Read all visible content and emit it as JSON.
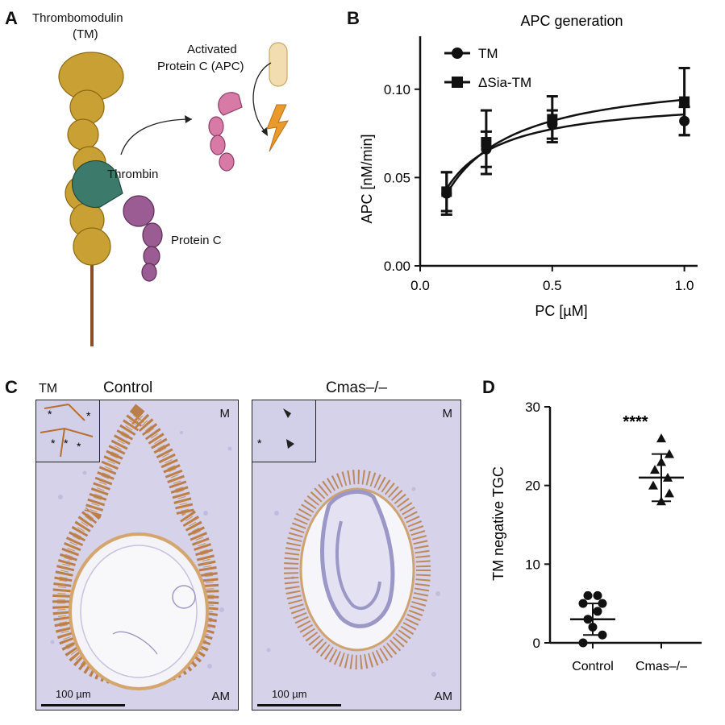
{
  "panels": {
    "a": "A",
    "b": "B",
    "c": "C",
    "d": "D"
  },
  "schematic": {
    "tm_label": "Thrombomodulin",
    "tm_abbrev": "(TM)",
    "apc_line1": "Activated",
    "apc_line2": "Protein C (APC)",
    "thrombin": "Thrombin",
    "protein_c": "Protein C"
  },
  "micrographs": {
    "stain_label": "TM",
    "control_title": "Control",
    "knockout_title": "Cmas–/–",
    "corner_top": "M",
    "corner_bottom": "AM",
    "scale_label": "100 µm"
  },
  "colors": {
    "tm_gold": "#c9a033",
    "thrombin_teal": "#3c7a6b",
    "protein_c_purple": "#9a5c93",
    "apc_pink": "#d87aa6",
    "lightning_orange": "#e99a2b",
    "stain_brown": "#b5702e",
    "tissue_blue": "#c9c6e4"
  },
  "chart_data": [
    {
      "type": "line",
      "title": "APC generation",
      "xlabel": "PC [µM]",
      "ylabel": "APC [nM/min]",
      "xlim": [
        0,
        1.05
      ],
      "ylim": [
        0,
        0.13
      ],
      "xticks": [
        "0.0",
        "0.5",
        "1.0"
      ],
      "yticks": [
        "0.00",
        "0.05",
        "0.10"
      ],
      "legend_position": "top-left",
      "series": [
        {
          "name": "TM",
          "marker": "circle",
          "x": [
            0.1,
            0.25,
            0.5,
            1.0
          ],
          "y": [
            0.041,
            0.066,
            0.08,
            0.082
          ],
          "err": [
            0.012,
            0.01,
            0.008,
            0.008
          ],
          "fit_vmax": 0.096,
          "fit_km": 0.12
        },
        {
          "name": "ΔSia-TM",
          "marker": "square",
          "x": [
            0.1,
            0.25,
            0.5,
            1.0
          ],
          "y": [
            0.042,
            0.07,
            0.083,
            0.093
          ],
          "err": [
            0.011,
            0.018,
            0.013,
            0.019
          ],
          "fit_vmax": 0.11,
          "fit_km": 0.17
        }
      ]
    },
    {
      "type": "scatter",
      "ylabel": "TM negative TGC",
      "categories": [
        "Control",
        "Cmas–/–"
      ],
      "ylim": [
        0,
        30
      ],
      "yticks": [
        "0",
        "10",
        "20",
        "30"
      ],
      "significance": "****",
      "groups": [
        {
          "name": "Control",
          "marker": "circle",
          "values": [
            0,
            1,
            2,
            3,
            4,
            5,
            5,
            6,
            6
          ],
          "mean": 3,
          "sd": 2
        },
        {
          "name": "Cmas–/–",
          "marker": "triangle",
          "values": [
            18,
            19,
            20,
            21,
            22,
            23,
            24,
            26
          ],
          "mean": 21,
          "sd": 3
        }
      ]
    }
  ]
}
